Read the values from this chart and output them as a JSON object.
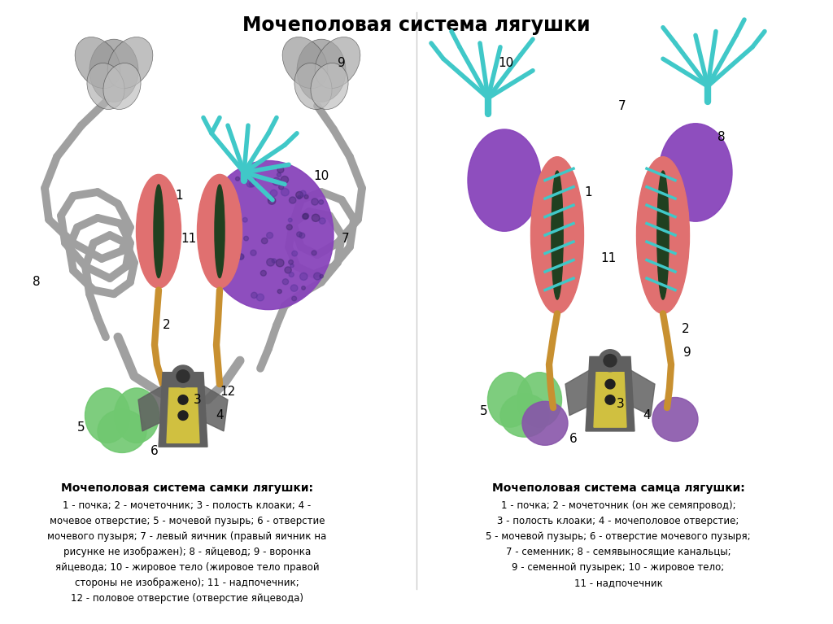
{
  "title": "Мочеполовая система лягушки",
  "title_fontsize": 17,
  "title_fontweight": "bold",
  "background_color": "#ffffff",
  "left_subtitle": "Мочеполовая система самки лягушки:",
  "right_subtitle": "Мочеполовая система самца лягушки:",
  "left_description": "1 - почка; 2 - мочеточник; 3 - полость клоаки; 4 -\nмочевое отверстие; 5 - мочевой пузырь; 6 - отверстие\nмочевого пузыря; 7 - левый яичник (правый яичник на\nрисунке не изображен); 8 - яйцевод; 9 - воронка\nяйцевода; 10 - жировое тело (жировое тело правой\nстороны не изображено); 11 - надпочечник;\n12 - половое отверстие (отверстие яйцевода)",
  "right_description": "1 - почка; 2 - мочеточник (он же семяпровод);\n3 - полость клоаки; 4 - мочеполовое отверстие;\n5 - мочевой пузырь; 6 - отверстие мочевого пузыря;\n7 - семенник; 8 - семявыносящие канальцы;\n9 - семенной пузырек; 10 - жировое тело;\n11 - надпочечник",
  "colors": {
    "kidney": "#E07070",
    "ovary": "#8844BB",
    "fat_body_cyan": "#40C8C8",
    "bladder_green": "#70C870",
    "oviduct_gray": "#A0A0A0",
    "ureter_orange": "#C89030",
    "cloaca_dark": "#606060",
    "cloaca_yellow": "#D0C040",
    "adrenal_dark": "#204020",
    "testis_purple": "#8844BB",
    "seminal_vesicle": "#8855AA",
    "tubules_cyan": "#40C8C8",
    "line_color": "#404040"
  }
}
